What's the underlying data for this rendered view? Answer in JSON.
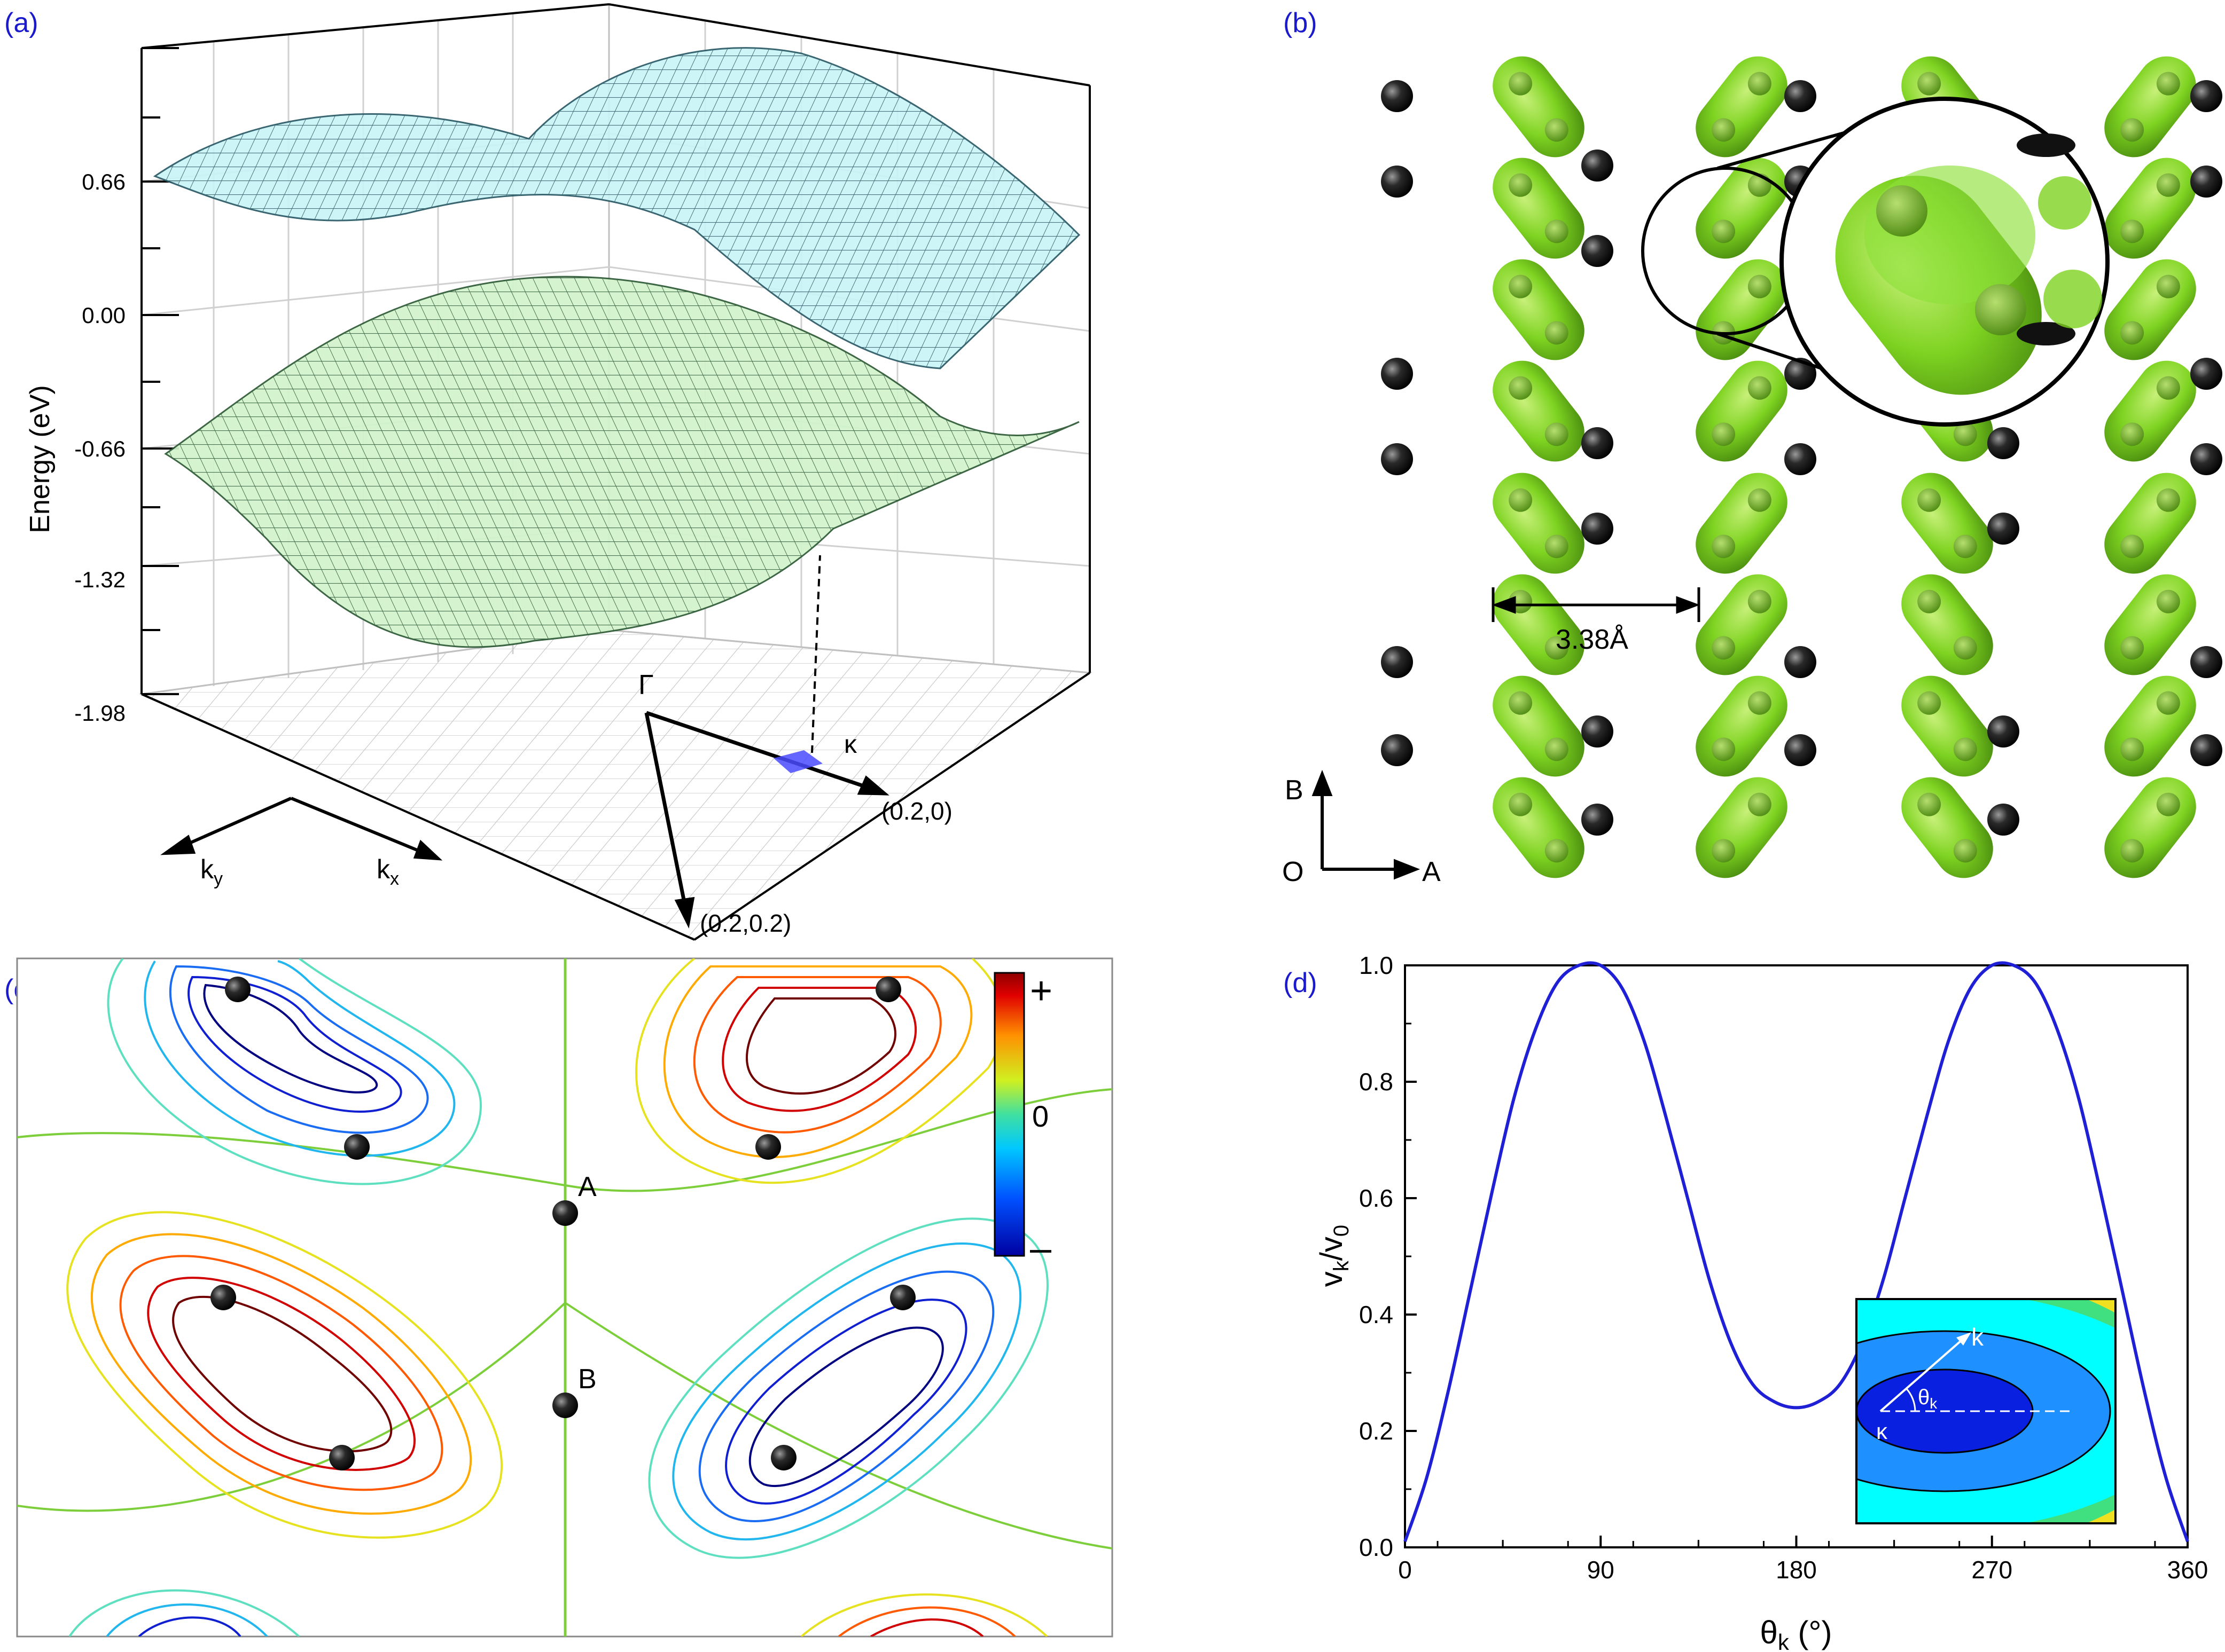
{
  "panel_a": {
    "label": "(a)",
    "ylabel": "Energy (eV)",
    "yticks": [
      "0.66",
      "0.00",
      "-0.66",
      "-1.32",
      "-1.98"
    ],
    "gamma": "Γ",
    "kappa": "κ",
    "k_x": "k",
    "k_x_sub": "x",
    "k_y": "k",
    "k_y_sub": "y",
    "point1": "(0.2,0)",
    "point2": "(0.2,0.2)",
    "upper_band_color": "#7fe6e6",
    "lower_band_color": "#9be59b",
    "marker_color": "#4444ff"
  },
  "panel_b": {
    "label": "(b)",
    "distance": "3.38Å",
    "axis_b": "B",
    "axis_a": "A",
    "origin": "O",
    "molecule_color": "#7ed321",
    "atom_color": "#1c1c1c"
  },
  "panel_c": {
    "label": "(c)",
    "site_a": "A",
    "site_b": "B",
    "colorbar_plus": "+",
    "colorbar_zero": "0",
    "colorbar_minus": "–"
  },
  "panel_d": {
    "label": "(d)",
    "inset_k": "k",
    "inset_theta": "θ",
    "inset_theta_sub": "k",
    "inset_kappa": "κ",
    "xlabel_main": "θ",
    "xlabel_sub": "k",
    "xlabel_unit": " (°)",
    "ylabel_a": "v",
    "ylabel_a_sub": "k",
    "ylabel_slash": "/v",
    "ylabel_b_sub": "0",
    "chart_data": {
      "type": "line",
      "title": "",
      "xlabel": "θk (°)",
      "ylabel": "vk/v0",
      "xlim": [
        0,
        360
      ],
      "ylim": [
        0,
        1.0
      ],
      "xticks": [
        "0",
        "90",
        "180",
        "270",
        "360"
      ],
      "yticks": [
        "0.0",
        "0.2",
        "0.4",
        "0.6",
        "0.8",
        "1.0"
      ],
      "series": [
        {
          "name": "vk/v0",
          "color": "#1f1fd6",
          "x": [
            0,
            10,
            20,
            30,
            40,
            50,
            60,
            70,
            80,
            90,
            100,
            110,
            120,
            130,
            140,
            150,
            160,
            170,
            180,
            190,
            200,
            210,
            220,
            230,
            240,
            250,
            260,
            270,
            280,
            290,
            300,
            310,
            320,
            330,
            340,
            350,
            360
          ],
          "y": [
            0.01,
            0.12,
            0.27,
            0.44,
            0.61,
            0.77,
            0.89,
            0.97,
            1.0,
            1.0,
            0.96,
            0.87,
            0.74,
            0.6,
            0.46,
            0.35,
            0.28,
            0.25,
            0.24,
            0.25,
            0.28,
            0.35,
            0.46,
            0.6,
            0.74,
            0.87,
            0.96,
            1.0,
            1.0,
            0.97,
            0.89,
            0.77,
            0.61,
            0.44,
            0.27,
            0.12,
            0.01
          ]
        }
      ]
    }
  }
}
